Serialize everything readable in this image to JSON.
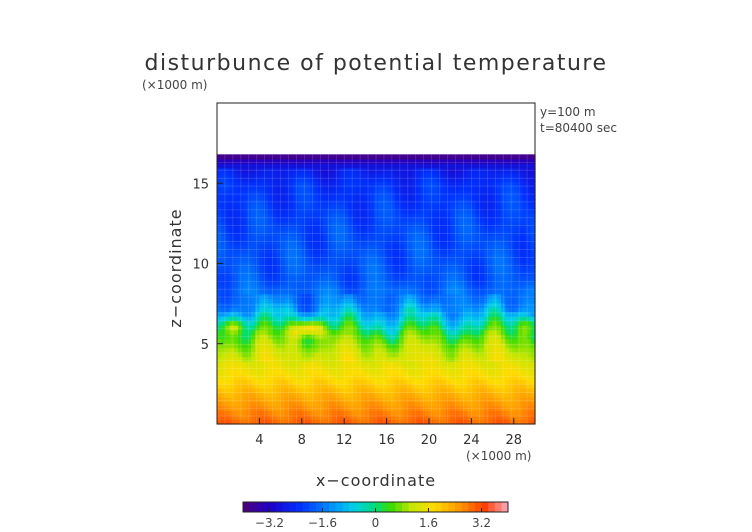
{
  "chart_data": {
    "type": "heatmap",
    "title": "disturbunce of potential temperature",
    "units_note": "(×1000 m)",
    "annotation_y": "y=100 m",
    "annotation_t": "t=80400 sec",
    "xlabel": "x−coordinate",
    "ylabel": "z−coordinate",
    "x_unit_label": "(×1000 m)",
    "xlim": [
      0,
      30
    ],
    "ylim": [
      0,
      20
    ],
    "x_ticks": [
      4,
      8,
      12,
      16,
      20,
      24,
      28
    ],
    "x_tick_labels": [
      "4",
      "8",
      "12",
      "16",
      "20",
      "24",
      "28"
    ],
    "y_ticks": [
      5,
      10,
      15
    ],
    "y_tick_labels": [
      "5",
      "10",
      "15"
    ],
    "data_top_z": 16.8,
    "color_range": [
      -4,
      4
    ],
    "colorbar_ticks": [
      -3.2,
      -1.6,
      0,
      1.6,
      3.2
    ],
    "colorbar_labels": [
      "−3.2",
      "−1.6",
      "0",
      "1.6",
      "3.2"
    ],
    "vertical_profile": [
      {
        "z": 0.0,
        "value": 3.0
      },
      {
        "z": 1.5,
        "value": 2.4
      },
      {
        "z": 3.0,
        "value": 1.7
      },
      {
        "z": 4.5,
        "value": 1.2
      },
      {
        "z": 5.5,
        "value": 0.6
      },
      {
        "z": 6.5,
        "value": -0.6
      },
      {
        "z": 7.5,
        "value": -1.5
      },
      {
        "z": 9.0,
        "value": -1.9
      },
      {
        "z": 12.0,
        "value": -2.0
      },
      {
        "z": 15.0,
        "value": -2.3
      },
      {
        "z": 16.0,
        "value": -2.7
      },
      {
        "z": 16.5,
        "value": -3.5
      },
      {
        "z": 16.8,
        "value": -4.0
      }
    ],
    "warm_blobs": [
      {
        "x": 1.5,
        "z": 6.1,
        "value": 1.5
      },
      {
        "x": 8.6,
        "z": 6.0,
        "value": 2.6
      },
      {
        "x": 29.5,
        "z": 6.2,
        "value": 1.2
      }
    ]
  }
}
